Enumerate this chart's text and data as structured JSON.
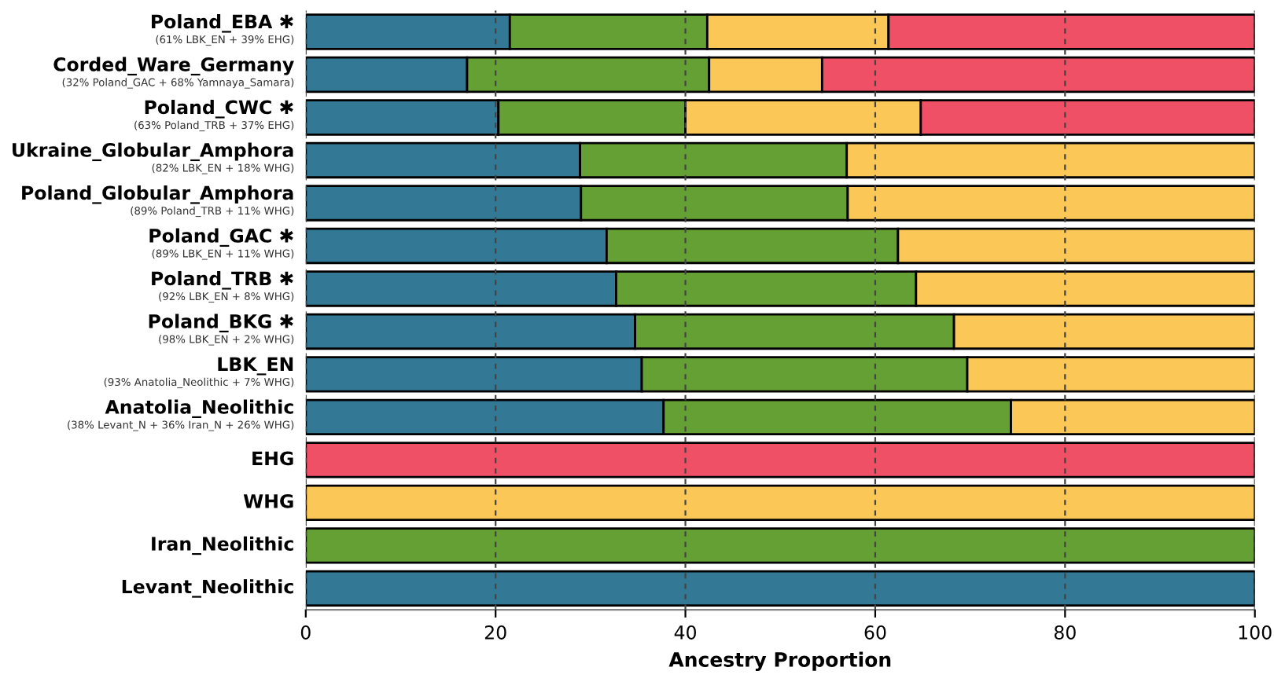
{
  "chart_data": {
    "type": "bar",
    "orientation": "horizontal",
    "stacked": true,
    "xlabel": "Ancestry Proportion",
    "categories": [
      "Poland_EBA ✱\n(61% LBK_EN + 39% EHG)",
      "Corded_Ware_Germany\n(32% Poland_GAC + 68% Yamnaya_Samara)",
      "Poland_CWC ✱\n(63% Poland_TRB + 37% EHG)",
      "Ukraine_Globular_Amphora\n(82% LBK_EN + 18% WHG)",
      "Poland_Globular_Amphora\n(89% Poland_TRB + 11% WHG)",
      "Poland_GAC ✱\n(89% LBK_EN + 11% WHG)",
      "Poland_TRB ✱\n(92% LBK_EN + 8% WHG)",
      "Poland_BKG ✱\n(98% LBK_EN + 2% WHG)",
      "LBK_EN\n(93% Anatolia_Neolithic + 7% WHG)",
      "Anatolia_Neolithic\n(38% Levant_N + 36% Iran_N + 26% WHG)",
      "EHG",
      "WHG",
      "Iran_Neolithic",
      "Levant_Neolithic"
    ],
    "series": [
      {
        "color": "#337895",
        "values": [
          21.5,
          17.0,
          20.3,
          28.9,
          29.0,
          31.7,
          32.7,
          34.7,
          35.4,
          37.7,
          0,
          0,
          0,
          100
        ]
      },
      {
        "color": "#64a033",
        "values": [
          20.8,
          25.5,
          19.7,
          28.1,
          28.1,
          30.7,
          31.6,
          33.6,
          34.3,
          36.6,
          0,
          0,
          100,
          0
        ]
      },
      {
        "color": "#fbc756",
        "values": [
          19.1,
          11.9,
          24.8,
          43.0,
          42.9,
          37.6,
          35.7,
          31.7,
          30.3,
          25.7,
          0,
          100,
          0,
          0
        ]
      },
      {
        "color": "#ef5066",
        "values": [
          38.6,
          45.6,
          35.2,
          0,
          0,
          0,
          0,
          0,
          0,
          0,
          100,
          0,
          0,
          0
        ]
      }
    ],
    "xlim": [
      0,
      100
    ],
    "xticks": [
      0,
      20,
      40,
      60,
      80,
      100
    ],
    "grid": "x"
  }
}
